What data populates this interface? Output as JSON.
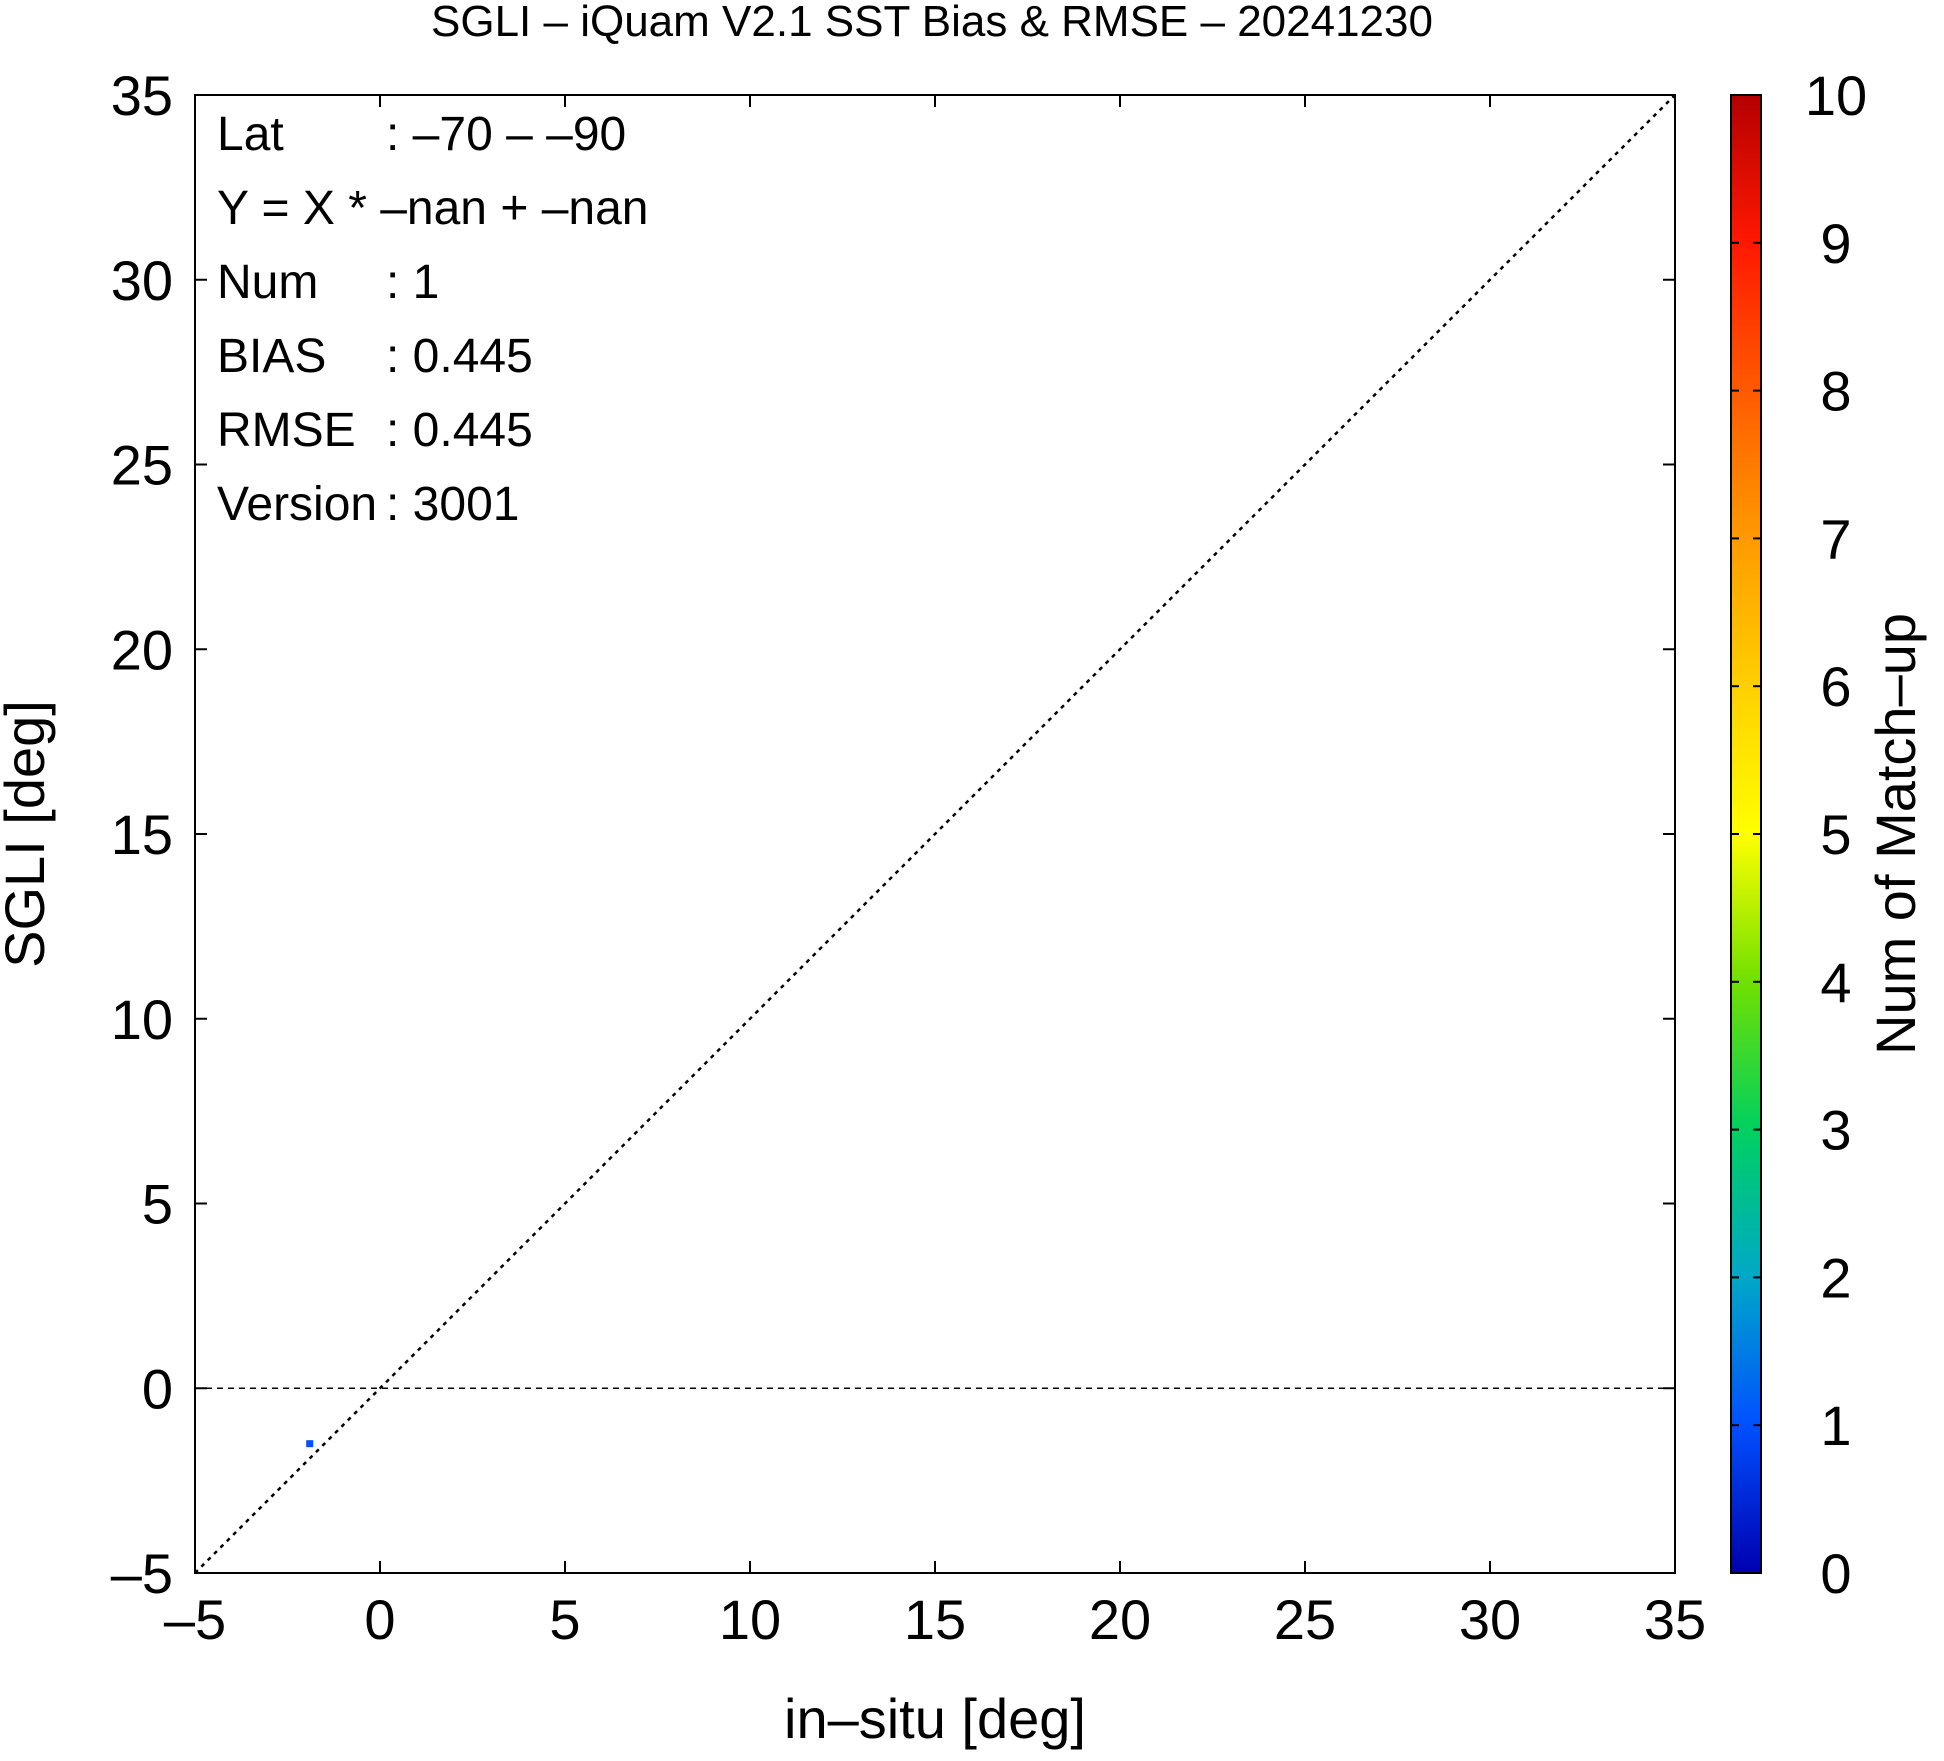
{
  "chart_data": {
    "type": "scatter",
    "title": "SGLI – iQuam V2.1 SST Bias & RMSE  – 20241230",
    "xlabel": "in–situ [deg]",
    "ylabel": "SGLI [deg]",
    "xlim": [
      -5,
      35
    ],
    "ylim": [
      -5,
      35
    ],
    "x_ticks": [
      "–5",
      "0",
      "5",
      "10",
      "15",
      "20",
      "25",
      "30",
      "35"
    ],
    "y_ticks": [
      "–5",
      "0",
      "5",
      "10",
      "15",
      "20",
      "25",
      "30",
      "35"
    ],
    "grid": false,
    "reference_lines": {
      "identity": "y = x (dotted)",
      "zero": "y = 0 (dashed)"
    },
    "points": [
      {
        "x": -1.9,
        "y": -1.5,
        "count": 1
      }
    ],
    "colorbar": {
      "label": "Num of Match–up",
      "min": 0,
      "max": 10,
      "ticks": [
        "0",
        "1",
        "2",
        "3",
        "4",
        "5",
        "6",
        "7",
        "8",
        "9",
        "10"
      ],
      "colors": [
        "#0000b0",
        "#0050ff",
        "#00a8c8",
        "#00d060",
        "#70e000",
        "#ffff00",
        "#ffd000",
        "#ff9a00",
        "#ff5a00",
        "#ff1800",
        "#b40000"
      ]
    },
    "stats": [
      {
        "label": "Lat",
        "value": ": –70 – –90"
      },
      {
        "label": "Y = X * –nan + –nan",
        "value": ""
      },
      {
        "label": "Num",
        "value": ": 1"
      },
      {
        "label": "BIAS",
        "value": ": 0.445"
      },
      {
        "label": "RMSE",
        "value": ": 0.445"
      },
      {
        "label": "Version",
        "value": ": 3001"
      }
    ]
  }
}
